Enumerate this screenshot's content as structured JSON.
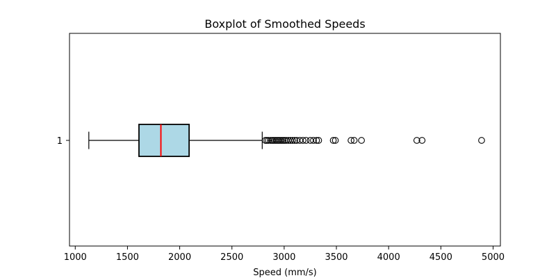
{
  "chart_data": {
    "type": "boxplot",
    "orientation": "horizontal",
    "title": "Boxplot of Smoothed Speeds",
    "xlabel": "Speed (mm/s)",
    "ylabel": "",
    "xlim": [
      945,
      5070
    ],
    "x_ticks": [
      1000,
      1500,
      2000,
      2500,
      3000,
      3500,
      4000,
      4500,
      5000
    ],
    "y_ticks": [
      "1"
    ],
    "grid": false,
    "colors": {
      "box_fill": "#add8e6",
      "box_edge": "#000000",
      "median": "#ff0000",
      "whisker": "#000000",
      "outlier_edge": "#000000"
    },
    "boxes": [
      {
        "label": "1",
        "whisker_low": 1130,
        "q1": 1610,
        "median": 1820,
        "q3": 2090,
        "whisker_high": 2790,
        "outliers": [
          2820,
          2835,
          2850,
          2870,
          2885,
          2900,
          2915,
          2930,
          2945,
          2960,
          2975,
          2990,
          3005,
          3020,
          3040,
          3060,
          3080,
          3100,
          3120,
          3150,
          3180,
          3210,
          3250,
          3280,
          3310,
          3330,
          3470,
          3490,
          3640,
          3670,
          3740,
          4270,
          4320,
          4890
        ]
      }
    ]
  }
}
